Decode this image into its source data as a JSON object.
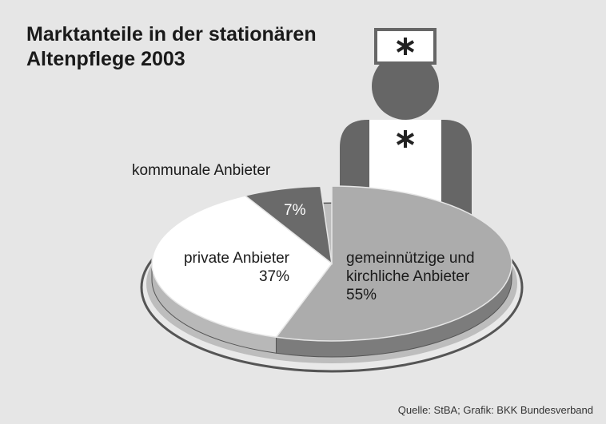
{
  "chart_data": {
    "type": "pie",
    "title": "Marktanteile in der stationären Altenpflege 2003",
    "categories": [
      "gemeinnützige und kirchliche Anbieter",
      "private Anbieter",
      "kommunale Anbieter"
    ],
    "values": [
      55,
      37,
      7
    ],
    "value_labels": [
      "55%",
      "37%",
      "7%"
    ],
    "colors": [
      "#acacac",
      "#ffffff",
      "#6a6a6a"
    ],
    "source": "Quelle: StBA; Grafik: BKK Bundesverband"
  }
}
